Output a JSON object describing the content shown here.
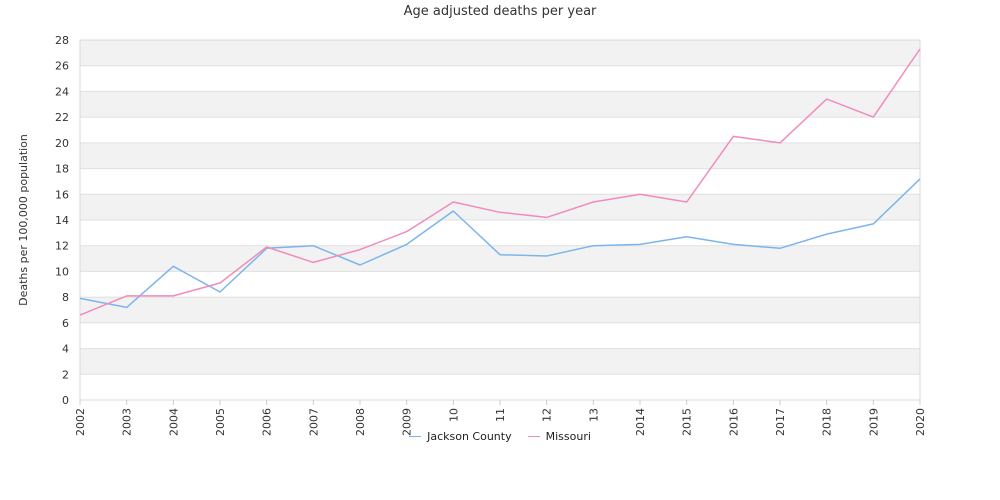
{
  "chart_data": {
    "type": "line",
    "title": "Age adjusted deaths per year",
    "ylabel": "Deaths per 100,000 population",
    "xlabel": "",
    "ylim": [
      0,
      28
    ],
    "yticks": [
      0,
      2,
      4,
      6,
      8,
      10,
      12,
      14,
      16,
      18,
      20,
      22,
      24,
      26,
      28
    ],
    "categories": [
      "2002",
      "2003",
      "2004",
      "2005",
      "2006",
      "2007",
      "2008",
      "2009",
      "2010",
      "2011",
      "2012",
      "2013",
      "2014",
      "2015",
      "2016",
      "2017",
      "2018",
      "2019",
      "2020"
    ],
    "tick_labels": [
      "2002",
      "2003",
      "2004",
      "2005",
      "2006",
      "2007",
      "2008",
      "2009",
      "10",
      "11",
      "12",
      "13",
      "2014",
      "2015",
      "2016",
      "2017",
      "2018",
      "2019",
      "2020"
    ],
    "grid": "alternating horizontal bands",
    "legend_position": "bottom",
    "band_color": "#f2f2f2",
    "series": [
      {
        "name": "Jackson County",
        "color": "#7cb5ec",
        "values": [
          7.9,
          7.2,
          10.4,
          8.4,
          11.8,
          12.0,
          10.5,
          12.1,
          14.7,
          11.3,
          11.2,
          12.0,
          12.1,
          12.7,
          12.1,
          11.8,
          12.9,
          13.7,
          17.2
        ]
      },
      {
        "name": "Missouri",
        "color": "#f08cbc",
        "values": [
          6.6,
          8.1,
          8.1,
          9.1,
          11.9,
          10.7,
          11.7,
          13.1,
          15.4,
          14.6,
          14.2,
          15.4,
          16.0,
          15.4,
          20.5,
          20.0,
          23.4,
          22.0,
          27.3
        ]
      }
    ]
  }
}
